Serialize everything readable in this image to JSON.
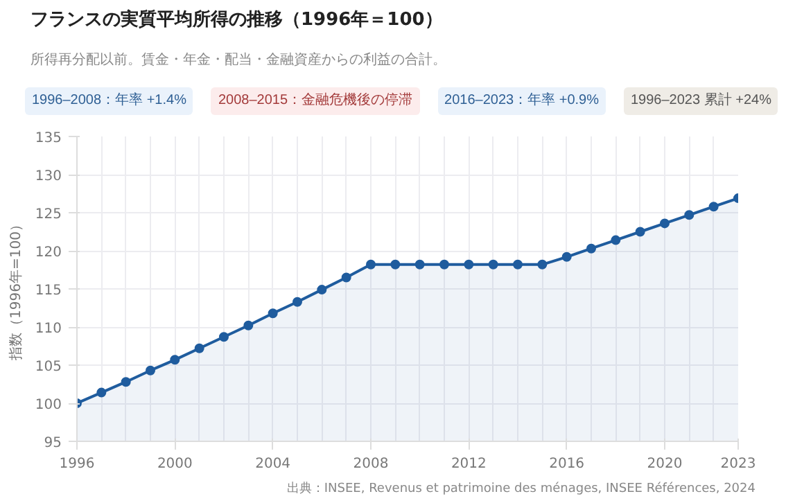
{
  "chart_data": {
    "type": "area",
    "title": "フランスの実質平均所得の推移（1996年＝100）",
    "subtitle": "所得再分配以前。賃金・年金・配当・金融資産からの利益の合計。",
    "ylabel": "指数（1996年=100）",
    "annotations": [
      "1996–2008：年率 +1.4%",
      "2008–2015：金融危機後の停滞",
      "2016–2023：年率 +0.9%",
      "1996–2023 累計 +24%",
      "出典：INSEE, Revenus et patrimoine des ménages, INSEE Références, 2024"
    ],
    "x": [
      1996,
      1997,
      1998,
      1999,
      2000,
      2001,
      2002,
      2003,
      2004,
      2005,
      2006,
      2007,
      2008,
      2009,
      2010,
      2011,
      2012,
      2013,
      2014,
      2015,
      2016,
      2017,
      2018,
      2019,
      2020,
      2021,
      2022,
      2023
    ],
    "series": [
      {
        "color": "#1f5c9e",
        "values": [
          100,
          101.4,
          102.8,
          104.3,
          105.7,
          107.2,
          108.7,
          110.2,
          111.8,
          113.3,
          114.9,
          116.5,
          118.2,
          118.2,
          118.2,
          118.2,
          118.2,
          118.2,
          118.2,
          118.2,
          119.2,
          120.3,
          121.4,
          122.5,
          123.6,
          124.7,
          125.8,
          126.9
        ]
      }
    ],
    "xlim": [
      1996,
      2023
    ],
    "xticks": [
      1996,
      2000,
      2004,
      2008,
      2012,
      2016,
      2020,
      2023
    ],
    "ylim": [
      95,
      135
    ],
    "yticks": [
      95,
      100,
      105,
      110,
      115,
      120,
      125,
      130,
      135
    ],
    "grid": true,
    "marker": "circle",
    "line_style": "solid"
  }
}
